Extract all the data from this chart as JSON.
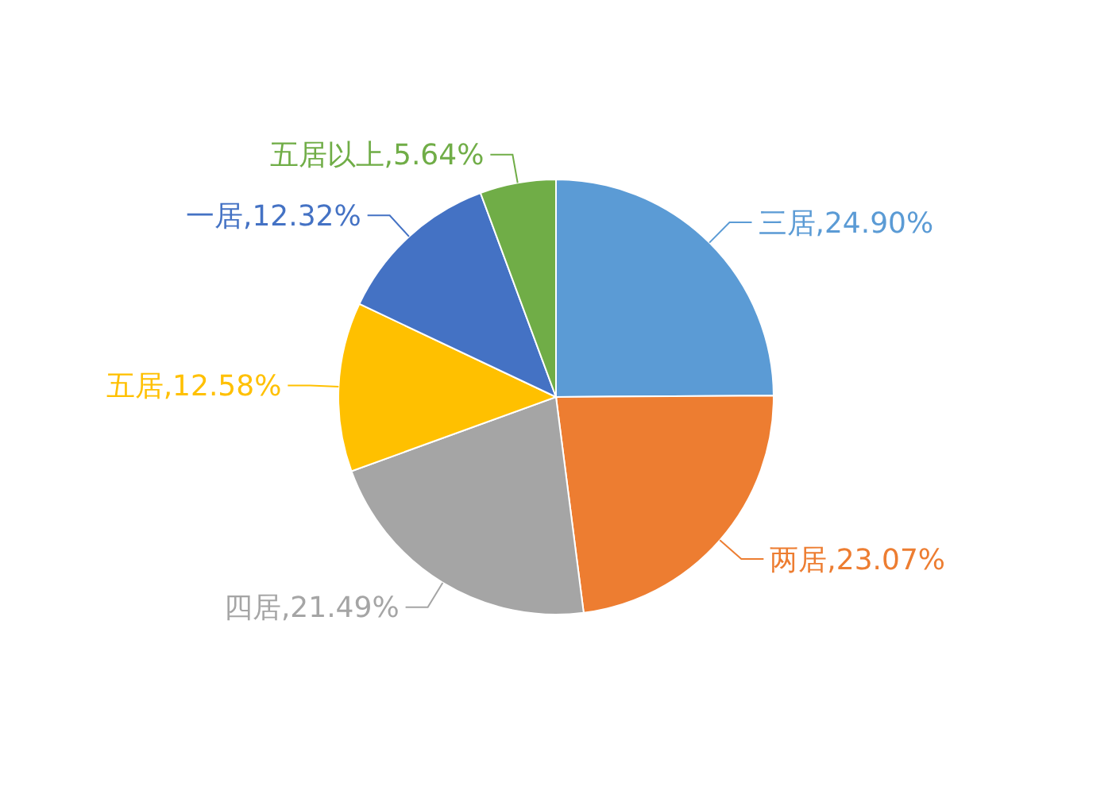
{
  "chart_data": {
    "type": "pie",
    "categories": [
      "三居",
      "两居",
      "四居",
      "五居",
      "一居",
      "五居以上"
    ],
    "values": [
      24.9,
      23.07,
      21.49,
      12.58,
      12.32,
      5.64
    ],
    "colors": [
      "#5b9bd5",
      "#ed7d31",
      "#a5a5a5",
      "#ffc000",
      "#4472c4",
      "#70ad47"
    ],
    "value_labels": [
      "24.90%",
      "23.07%",
      "21.49%",
      "12.58%",
      "12.32%",
      "5.64%"
    ],
    "legend": false
  }
}
